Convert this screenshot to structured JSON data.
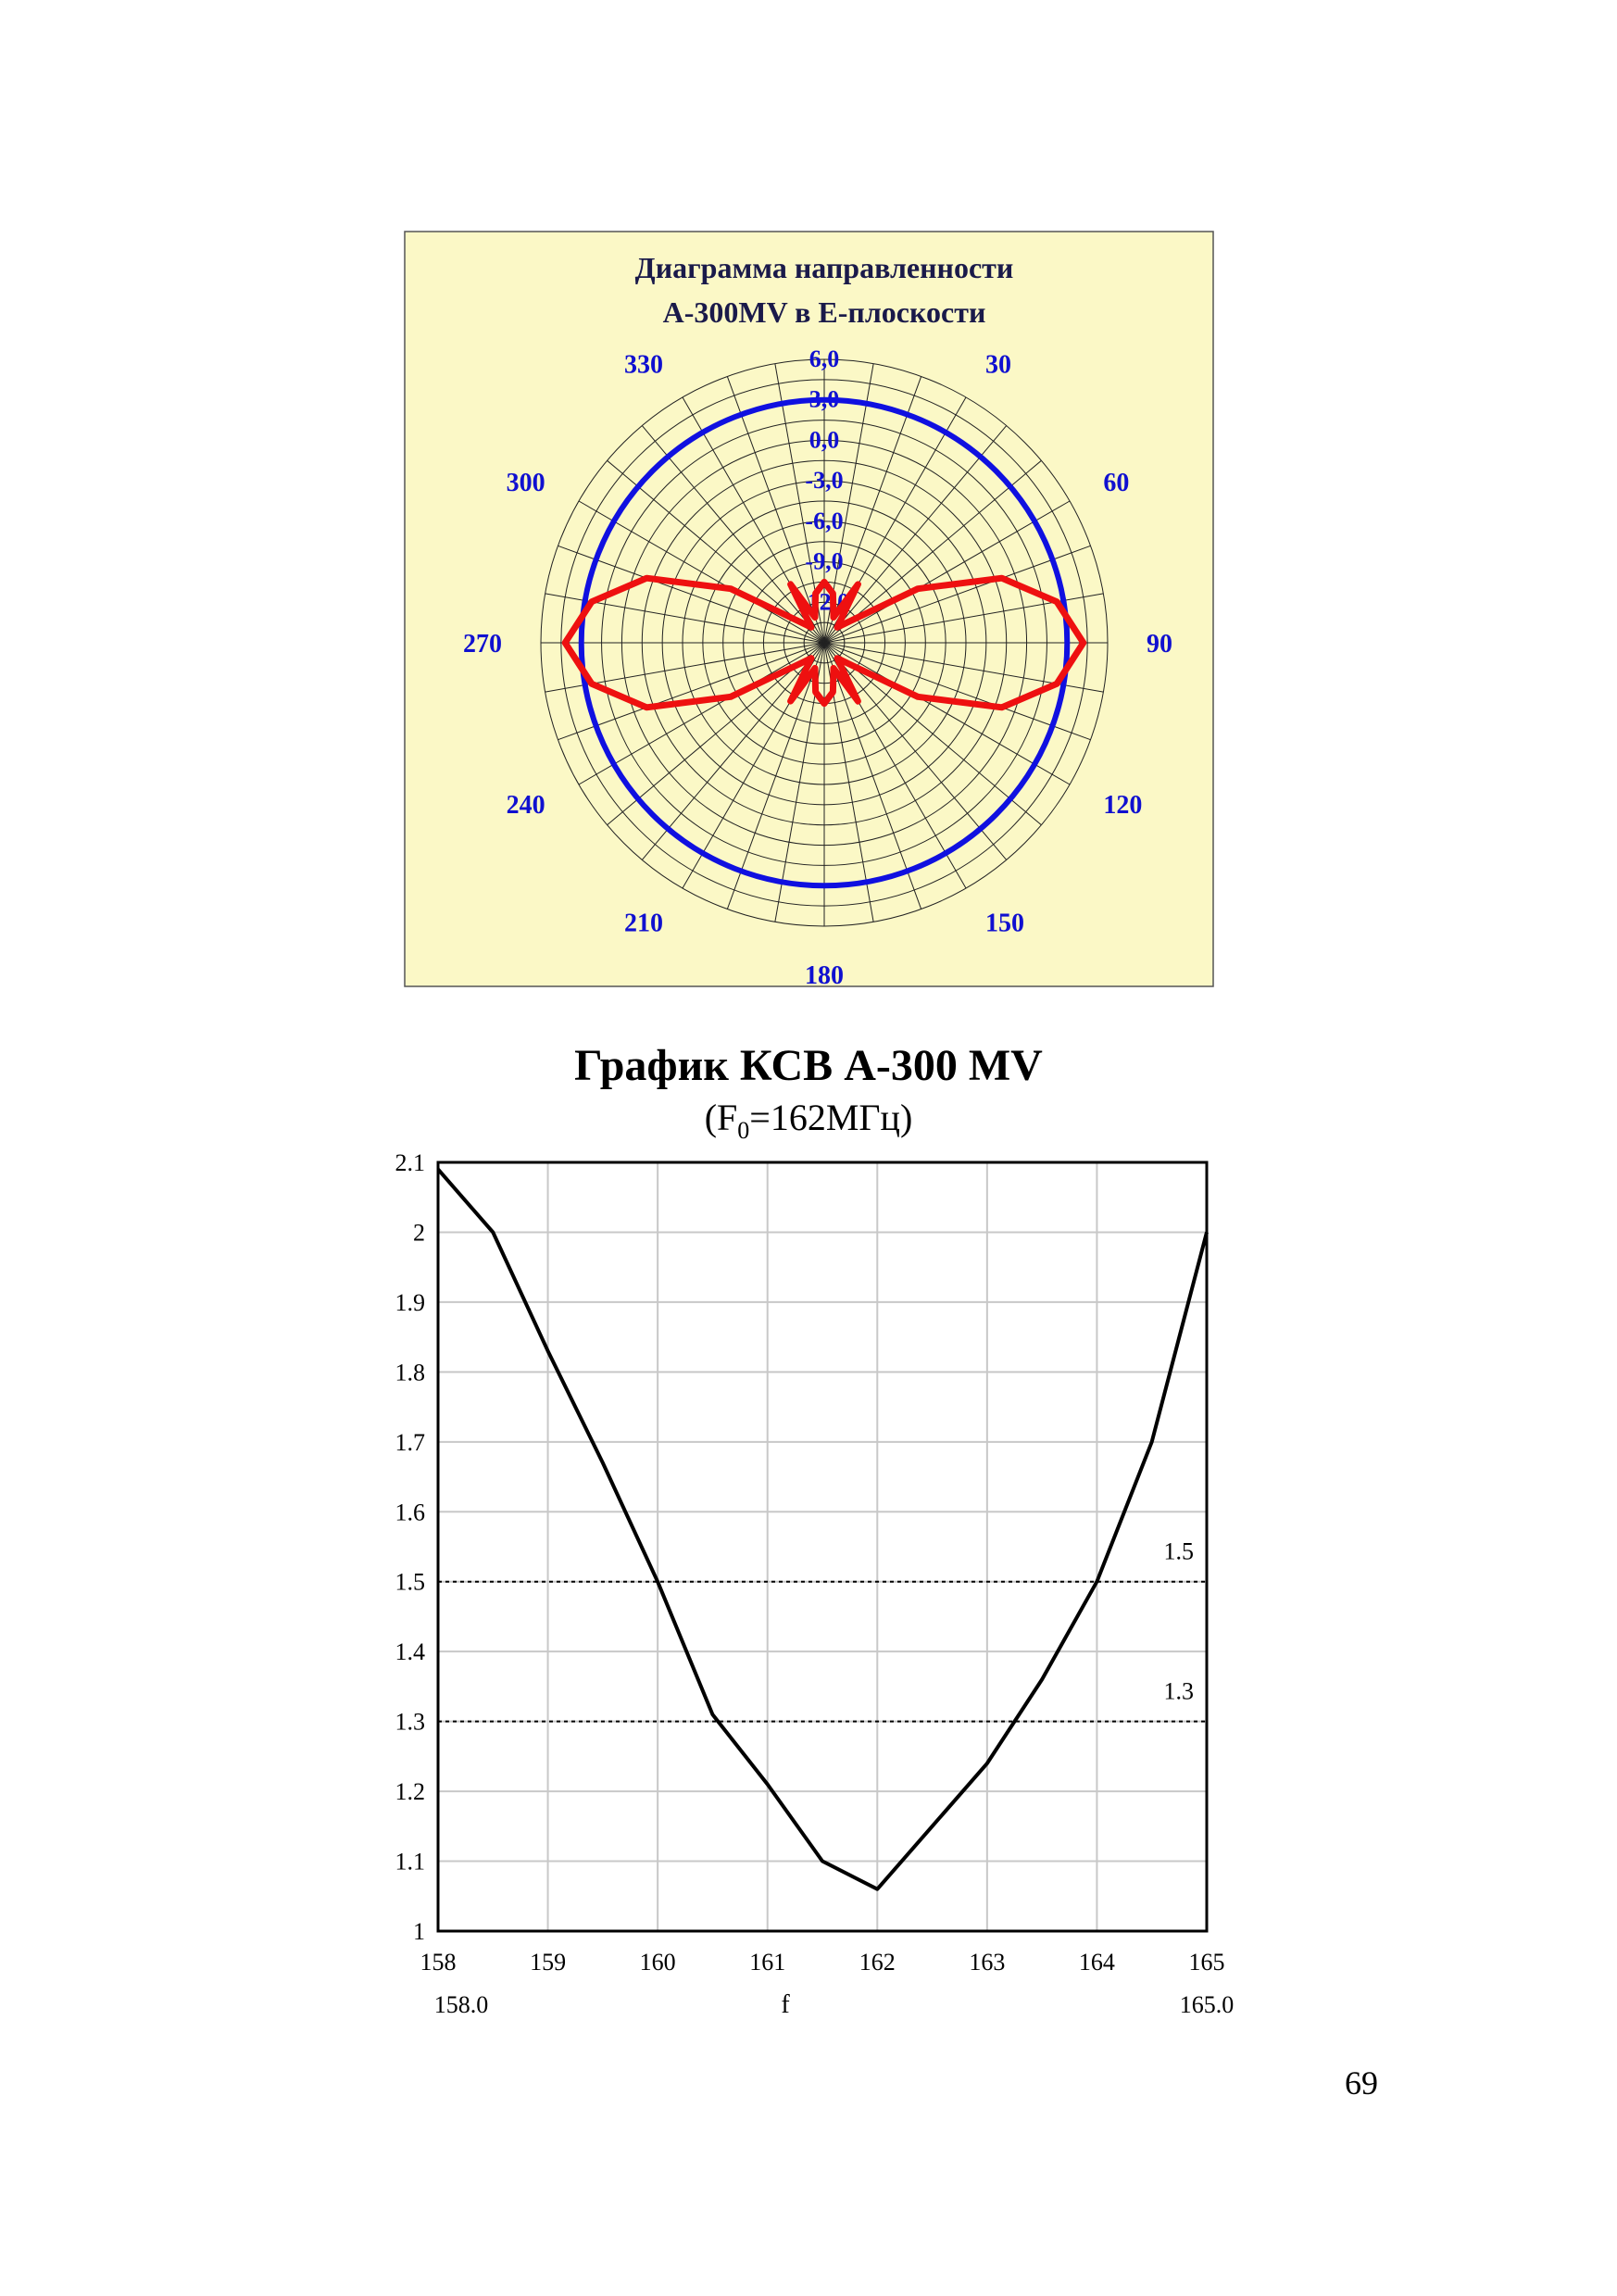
{
  "chart_data": [
    {
      "type": "polar",
      "title": "Диаграмма направленности",
      "subtitle": "A-300MV в E-плоскости",
      "angle_labels": [
        "330",
        "30",
        "300",
        "60",
        "270",
        "90",
        "240",
        "120",
        "210",
        "150",
        "180"
      ],
      "radial_labels": [
        "6,0",
        "3,0",
        "0,0",
        "-3,0",
        "-6,0",
        "-9,0",
        "-12,0"
      ],
      "r_range_db": [
        -15,
        6
      ],
      "angle_step_deg": 10,
      "radial_step_db": 1.5,
      "zero_direction": "top",
      "direction": "clockwise",
      "background_color": "#FBF8C6",
      "series": [
        {
          "color": "#1010E0",
          "angle_deg": [
            0,
            90,
            180,
            270,
            360
          ],
          "gain_db": [
            3.0,
            3.0,
            3.0,
            3.0,
            3.0
          ]
        },
        {
          "color": "#EE1010",
          "angle_deg": [
            0,
            10,
            20,
            30,
            40,
            50,
            60,
            70,
            80,
            90,
            100,
            110,
            120,
            130,
            140,
            150,
            160,
            170,
            180,
            190,
            200,
            210,
            220,
            230,
            240,
            250,
            260,
            270,
            280,
            290,
            300,
            310,
            320,
            330,
            340,
            350,
            360
          ],
          "gain_db": [
            -10.5,
            -11.3,
            -13.0,
            -10.0,
            -13.5,
            -12.5,
            -7.0,
            -1.0,
            2.5,
            4.2,
            2.5,
            -1.0,
            -7.0,
            -12.5,
            -13.5,
            -10.0,
            -13.0,
            -11.3,
            -10.5,
            -11.3,
            -13.0,
            -10.0,
            -13.5,
            -12.5,
            -7.0,
            -1.0,
            2.5,
            4.2,
            2.5,
            -1.0,
            -7.0,
            -12.5,
            -13.5,
            -10.0,
            -13.0,
            -11.3,
            -10.5
          ]
        }
      ]
    },
    {
      "type": "line",
      "title": "График КСВ А-300 MV",
      "subtitle_main": "(F",
      "subtitle_sub": "0",
      "subtitle_rest": "=162МГц)",
      "xlabel": "f",
      "x_start_label": "158.0",
      "x_end_label": "165.0",
      "xlim": [
        158,
        165
      ],
      "ylim": [
        1,
        2.1
      ],
      "xticks": [
        "158",
        "159",
        "160",
        "161",
        "162",
        "163",
        "164",
        "165"
      ],
      "yticks": [
        "1",
        "1.1",
        "1.2",
        "1.3",
        "1.4",
        "1.5",
        "1.6",
        "1.7",
        "1.8",
        "1.9",
        "2",
        "2.1"
      ],
      "grid": true,
      "series": [
        {
          "color": "#000000",
          "x": [
            158.0,
            158.5,
            159.0,
            159.5,
            160.0,
            160.5,
            161.0,
            161.5,
            162.0,
            162.5,
            163.0,
            163.5,
            164.0,
            164.5,
            165.0
          ],
          "y": [
            2.09,
            2.0,
            1.83,
            1.67,
            1.5,
            1.31,
            1.21,
            1.1,
            1.06,
            1.15,
            1.24,
            1.36,
            1.5,
            1.7,
            2.0
          ]
        }
      ],
      "reference_lines": [
        {
          "y": 1.5,
          "label": "1.5"
        },
        {
          "y": 1.3,
          "label": "1.3"
        }
      ]
    }
  ],
  "page": {
    "number": "69"
  }
}
